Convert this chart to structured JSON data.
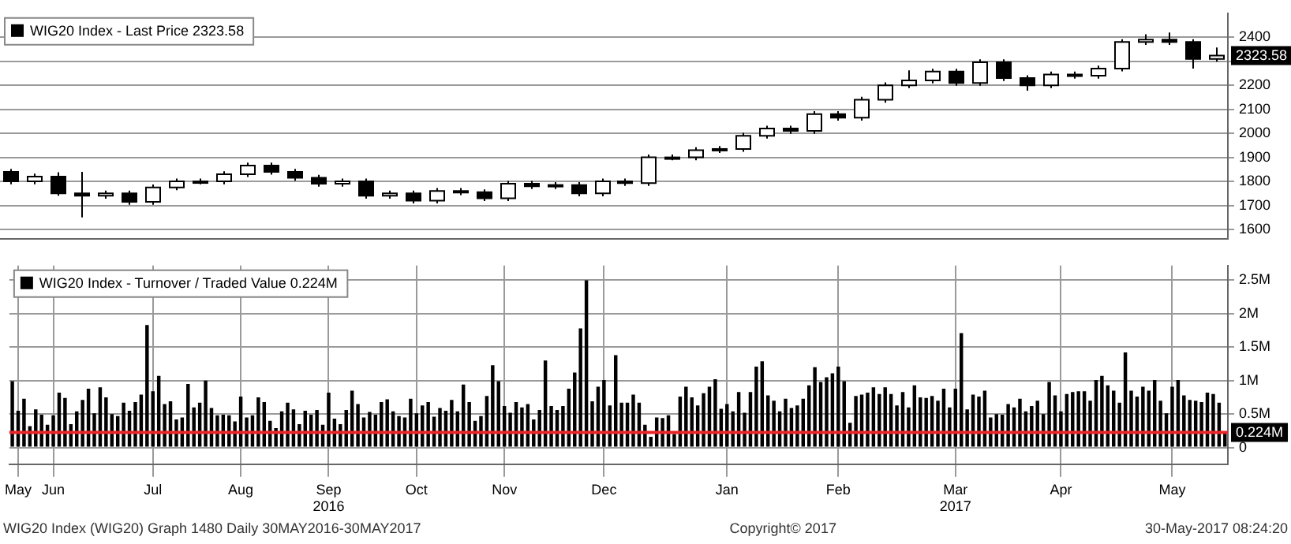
{
  "chart_data": [
    {
      "type": "candlestick",
      "legend": "top left",
      "grid": "y",
      "tick_labels": "y",
      "categories": [
        null,
        null,
        null,
        null,
        null,
        null,
        null,
        null,
        null,
        null,
        null,
        null,
        null,
        null,
        null,
        null,
        null,
        null,
        null,
        null,
        null,
        null,
        null,
        null,
        null,
        null,
        null,
        null,
        null,
        null,
        null,
        null,
        null,
        null,
        null,
        null,
        null,
        null,
        null,
        null,
        null,
        null,
        null,
        null,
        null,
        null,
        null,
        null,
        null,
        null,
        null,
        null
      ],
      "series": [
        {
          "name": "WIG20 Index - Last Price 2323.58",
          "color": "#000000",
          "colors": [
            "#000000",
            "#ffffff",
            "#000000",
            "#000000",
            "#ffffff",
            "#000000",
            "#ffffff",
            "#ffffff",
            "#ffffff",
            "#ffffff",
            "#ffffff",
            "#000000",
            "#000000",
            "#000000",
            "#ffffff",
            "#000000",
            "#ffffff",
            "#000000",
            "#ffffff",
            "#000000",
            "#000000",
            "#ffffff",
            "#000000",
            "#ffffff",
            "#000000",
            "#ffffff",
            "#000000",
            "#ffffff",
            "#ffffff",
            "#ffffff",
            "#ffffff",
            "#ffffff",
            "#ffffff",
            "#000000",
            "#ffffff",
            "#000000",
            "#ffffff",
            "#ffffff",
            "#ffffff",
            "#ffffff",
            "#000000",
            "#ffffff",
            "#000000",
            "#000000",
            "#ffffff",
            "#000000",
            "#ffffff",
            "#ffffff",
            "#ffffff",
            "#000000",
            "#000000",
            "#ffffff"
          ],
          "ohlc": [
            [
              1840,
              1852,
              1788,
              1800
            ],
            [
              1800,
              1832,
              1788,
              1820
            ],
            [
              1820,
              1838,
              1740,
              1750
            ],
            [
              1750,
              1840,
              1650,
              1740
            ],
            [
              1740,
              1762,
              1728,
              1750
            ],
            [
              1750,
              1762,
              1703,
              1715
            ],
            [
              1715,
              1787,
              1703,
              1775
            ],
            [
              1775,
              1812,
              1763,
              1800
            ],
            [
              1800,
              1812,
              1788,
              1800
            ],
            [
              1800,
              1842,
              1788,
              1830
            ],
            [
              1830,
              1878,
              1818,
              1866
            ],
            [
              1866,
              1878,
              1828,
              1840
            ],
            [
              1840,
              1852,
              1803,
              1815
            ],
            [
              1815,
              1827,
              1778,
              1790
            ],
            [
              1790,
              1812,
              1778,
              1800
            ],
            [
              1800,
              1812,
              1728,
              1740
            ],
            [
              1740,
              1762,
              1728,
              1750
            ],
            [
              1750,
              1762,
              1708,
              1720
            ],
            [
              1720,
              1772,
              1708,
              1760
            ],
            [
              1760,
              1772,
              1743,
              1755
            ],
            [
              1755,
              1767,
              1718,
              1730
            ],
            [
              1730,
              1802,
              1718,
              1790
            ],
            [
              1790,
              1802,
              1768,
              1780
            ],
            [
              1780,
              1797,
              1768,
              1785
            ],
            [
              1785,
              1797,
              1738,
              1750
            ],
            [
              1750,
              1812,
              1738,
              1800
            ],
            [
              1800,
              1812,
              1781,
              1793
            ],
            [
              1793,
              1912,
              1781,
              1900
            ],
            [
              1900,
              1912,
              1888,
              1900
            ],
            [
              1900,
              1942,
              1888,
              1930
            ],
            [
              1930,
              1947,
              1918,
              1935
            ],
            [
              1935,
              2002,
              1923,
              1990
            ],
            [
              1990,
              2032,
              1978,
              2020
            ],
            [
              2020,
              2032,
              1998,
              2010
            ],
            [
              2010,
              2092,
              1998,
              2080
            ],
            [
              2080,
              2092,
              2053,
              2065
            ],
            [
              2065,
              2152,
              2053,
              2140
            ],
            [
              2140,
              2212,
              2128,
              2200
            ],
            [
              2200,
              2262,
              2188,
              2220
            ],
            [
              2220,
              2269,
              2208,
              2257
            ],
            [
              2257,
              2269,
              2198,
              2210
            ],
            [
              2210,
              2308,
              2198,
              2296
            ],
            [
              2296,
              2308,
              2218,
              2230
            ],
            [
              2230,
              2242,
              2178,
              2200
            ],
            [
              2200,
              2257,
              2188,
              2245
            ],
            [
              2245,
              2257,
              2228,
              2240
            ],
            [
              2240,
              2282,
              2228,
              2270
            ],
            [
              2270,
              2392,
              2258,
              2380
            ],
            [
              2380,
              2412,
              2368,
              2390
            ],
            [
              2390,
              2420,
              2368,
              2380
            ],
            [
              2380,
              2392,
              2270,
              2310
            ],
            [
              2310,
              2357,
              2298,
              2323.58
            ]
          ]
        }
      ],
      "ylim": [
        1560,
        2500
      ],
      "yticks": [
        1600,
        1700,
        1800,
        1900,
        2000,
        2100,
        2200,
        {
          "value": 2300,
          "label": null
        },
        2400
      ],
      "annotations": [
        {
          "text": "2323.58",
          "y": 2323.58
        }
      ]
    },
    {
      "type": "bar",
      "legend": "top left",
      "grid": true,
      "categories": [
        null,
        "May",
        null,
        null,
        null,
        null,
        null,
        "Jun",
        null,
        null,
        null,
        null,
        null,
        null,
        null,
        null,
        null,
        null,
        null,
        null,
        null,
        null,
        null,
        null,
        "Jul",
        null,
        null,
        null,
        null,
        null,
        null,
        null,
        null,
        null,
        null,
        null,
        null,
        null,
        null,
        "Aug",
        null,
        null,
        null,
        null,
        null,
        null,
        null,
        null,
        null,
        null,
        null,
        null,
        null,
        null,
        "Sep 2016",
        null,
        null,
        null,
        null,
        null,
        null,
        null,
        null,
        null,
        null,
        null,
        null,
        null,
        null,
        "Oct",
        null,
        null,
        null,
        null,
        null,
        null,
        null,
        null,
        null,
        null,
        null,
        null,
        null,
        null,
        "Nov",
        null,
        null,
        null,
        null,
        null,
        null,
        null,
        null,
        null,
        null,
        null,
        null,
        null,
        null,
        null,
        null,
        "Dec",
        null,
        null,
        null,
        null,
        null,
        null,
        null,
        null,
        null,
        null,
        null,
        null,
        null,
        null,
        null,
        null,
        null,
        null,
        null,
        null,
        "Jan",
        null,
        null,
        null,
        null,
        null,
        null,
        null,
        null,
        null,
        null,
        null,
        null,
        null,
        null,
        null,
        null,
        null,
        null,
        "Feb",
        null,
        null,
        null,
        null,
        null,
        null,
        null,
        null,
        null,
        null,
        null,
        null,
        null,
        null,
        null,
        null,
        null,
        null,
        null,
        "Mar 2017",
        null,
        null,
        null,
        null,
        null,
        null,
        null,
        null,
        null,
        null,
        null,
        null,
        null,
        null,
        null,
        null,
        null,
        "Apr",
        null,
        null,
        null,
        null,
        null,
        null,
        null,
        null,
        null,
        null,
        null,
        null,
        null,
        null,
        null,
        null,
        null,
        null,
        "May",
        null,
        null,
        null,
        null,
        null,
        null,
        null,
        null,
        null
      ],
      "series": [
        {
          "name": "WIG20 Index - Turnover / Traded Value 0.224M",
          "color": "#000000",
          "values": [
            0.99,
            0.55,
            0.73,
            0.32,
            0.57,
            0.49,
            0.34,
            0.48,
            0.82,
            0.74,
            0.35,
            0.54,
            0.71,
            0.88,
            0.51,
            0.9,
            0.75,
            0.5,
            0.47,
            0.67,
            0.55,
            0.68,
            0.79,
            1.83,
            0.84,
            1.07,
            0.65,
            0.69,
            0.42,
            0.45,
            0.95,
            0.6,
            0.67,
            1.0,
            0.59,
            0.48,
            0.49,
            0.48,
            0.39,
            0.76,
            0.45,
            0.48,
            0.75,
            0.68,
            0.4,
            0.29,
            0.54,
            0.67,
            0.57,
            0.35,
            0.55,
            0.49,
            0.56,
            0.34,
            0.82,
            0.43,
            0.35,
            0.56,
            0.85,
            0.65,
            0.45,
            0.53,
            0.49,
            0.68,
            0.72,
            0.54,
            0.47,
            0.45,
            0.73,
            0.51,
            0.63,
            0.68,
            0.46,
            0.59,
            0.55,
            0.71,
            0.54,
            0.94,
            0.68,
            0.4,
            0.47,
            0.77,
            1.23,
            0.99,
            0.62,
            0.52,
            0.68,
            0.6,
            0.65,
            0.42,
            0.56,
            1.3,
            0.62,
            0.56,
            0.62,
            0.88,
            1.12,
            1.78,
            2.5,
            0.69,
            0.91,
            1.01,
            0.63,
            1.38,
            0.67,
            0.67,
            0.79,
            0.67,
            0.34,
            0.16,
            0.45,
            0.44,
            0.48,
            0.2,
            0.76,
            0.91,
            0.75,
            0.63,
            0.81,
            0.91,
            1.02,
            0.58,
            0.65,
            0.54,
            0.83,
            0.52,
            0.83,
            1.21,
            1.29,
            0.78,
            0.7,
            0.54,
            0.73,
            0.59,
            0.63,
            0.73,
            0.93,
            1.2,
            0.98,
            1.05,
            1.11,
            1.21,
            0.99,
            0.37,
            0.77,
            0.79,
            0.82,
            0.9,
            0.8,
            0.9,
            0.8,
            0.63,
            0.83,
            0.6,
            0.93,
            0.75,
            0.74,
            0.77,
            0.7,
            0.88,
            0.6,
            0.88,
            1.71,
            0.57,
            0.79,
            0.76,
            0.85,
            0.45,
            0.5,
            0.49,
            0.65,
            0.6,
            0.73,
            0.54,
            0.62,
            0.7,
            0.5,
            0.98,
            0.78,
            0.54,
            0.8,
            0.83,
            0.84,
            0.84,
            0.7,
            1.01,
            1.07,
            0.93,
            0.85,
            0.67,
            1.42,
            0.85,
            0.76,
            0.91,
            0.85,
            1.01,
            0.7,
            0.51,
            0.91,
            1.01,
            0.78,
            0.71,
            0.7,
            0.68,
            0.82,
            0.8,
            0.67,
            0.224
          ]
        }
      ],
      "ylim": [
        -0.25,
        2.72
      ],
      "yticks": [
        0,
        {
          "value": 0.5,
          "label": "0.5M"
        },
        {
          "value": 1,
          "label": "1M"
        },
        {
          "value": 1.5,
          "label": "1.5M"
        },
        {
          "value": 2,
          "label": "2M"
        },
        {
          "value": 2.5,
          "label": "2.5M"
        }
      ],
      "ref_lines": [
        {
          "axis": "y",
          "value": 0.224,
          "label": "0.224M",
          "color": "#e8262a"
        }
      ],
      "annotations": [
        "WIG20 Index (WIG20) Graph 1480 Daily 30MAY2016-30MAY2017",
        "Copyright© 2017",
        "30-May-2017 08:24:20"
      ]
    }
  ]
}
